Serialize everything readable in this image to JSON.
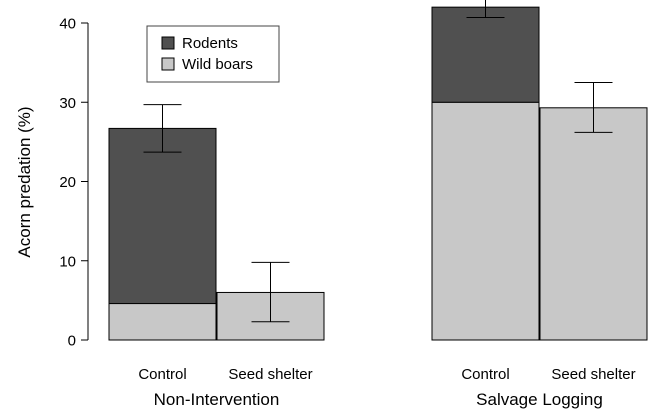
{
  "chart_data": {
    "type": "bar",
    "stacked": true,
    "ylabel": "Acorn predation (%)",
    "ylim": [
      0,
      42
    ],
    "yticks": [
      0,
      10,
      20,
      30,
      40
    ],
    "grid": false,
    "legend_position": "top-left",
    "groups": [
      {
        "label": "Non-Intervention",
        "categories": [
          "Control",
          "Seed shelter"
        ]
      },
      {
        "label": "Salvage Logging",
        "categories": [
          "Control",
          "Seed shelter"
        ]
      }
    ],
    "series": [
      {
        "name": "Wild boars",
        "color": "#c8c8c8",
        "values": [
          4.6,
          6.0,
          30.0,
          29.3
        ]
      },
      {
        "name": "Rodents",
        "color": "#505050",
        "values": [
          22.1,
          0,
          12.0,
          0
        ]
      }
    ],
    "totals": [
      26.7,
      6.0,
      42.0,
      29.3
    ],
    "error_bars": [
      {
        "low": 23.7,
        "high": 29.7
      },
      {
        "low": 2.3,
        "high": 9.8
      },
      {
        "low": 40.7,
        "high": 43.5
      },
      {
        "low": 26.2,
        "high": 32.5
      }
    ]
  }
}
